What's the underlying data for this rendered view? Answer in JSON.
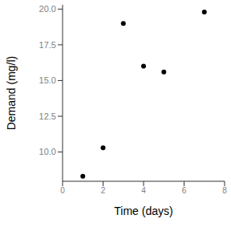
{
  "chart_data": {
    "type": "scatter",
    "x_label": "Time (days)",
    "y_label": "Demand (mg/l)",
    "x": [
      1,
      2,
      3,
      4,
      5,
      7
    ],
    "values": [
      8.3,
      10.3,
      19.0,
      16.0,
      15.6,
      19.8
    ],
    "color": "#000000",
    "xlim": [
      0,
      8
    ],
    "xticks": [
      0,
      2,
      4,
      6,
      8
    ],
    "ylim": [
      7.95,
      20.3
    ],
    "yticks": [
      {
        "value": 10,
        "label": "10.0"
      },
      {
        "value": 12.5,
        "label": "12.5"
      },
      {
        "value": 15,
        "label": "15.0"
      },
      {
        "value": 17.5,
        "label": "17.5"
      },
      {
        "value": 20,
        "label": "20.0"
      }
    ],
    "grid": false,
    "marker": "circle"
  }
}
